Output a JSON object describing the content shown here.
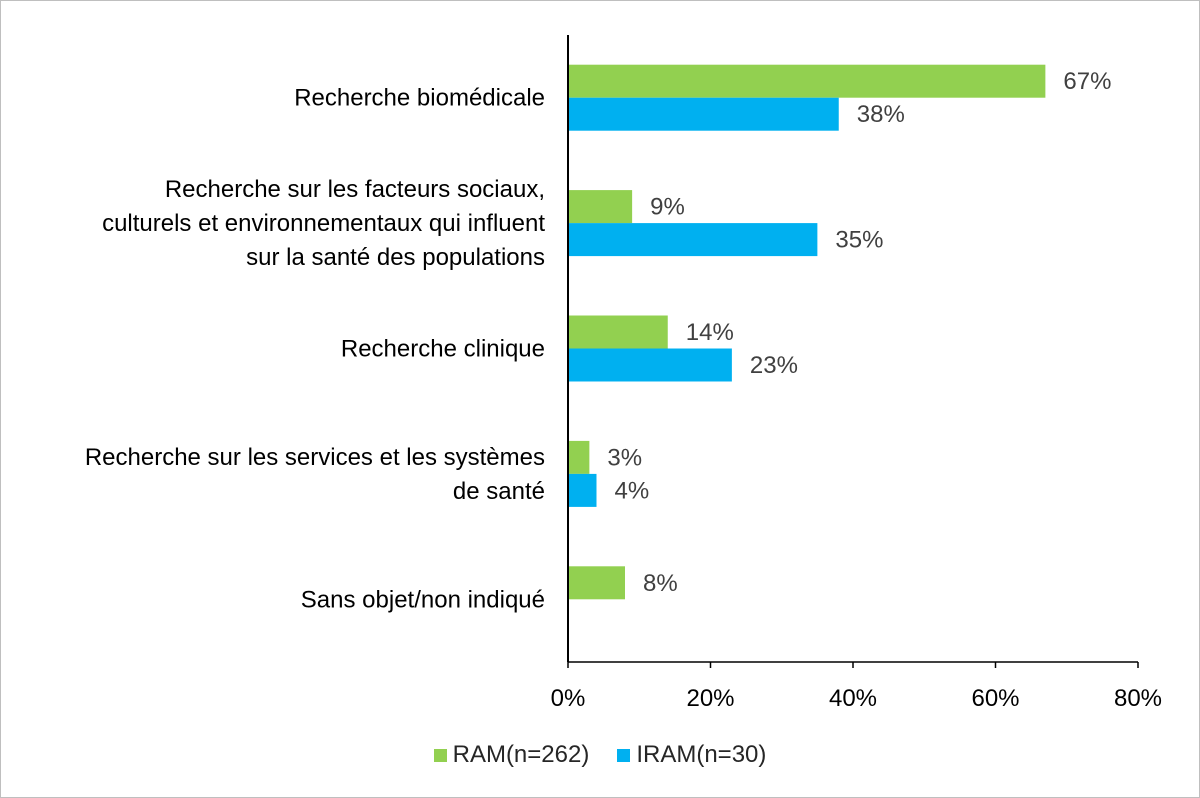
{
  "chart_data": {
    "type": "bar",
    "orientation": "horizontal",
    "categories": [
      "Recherche biomédicale",
      "Recherche sur les facteurs sociaux, culturels et environnementaux qui influent sur la santé des populations",
      "Recherche clinique",
      "Recherche sur les services et les systèmes de santé",
      "Sans objet/non indiqué"
    ],
    "category_lines": [
      [
        "Recherche biomédicale"
      ],
      [
        "Recherche sur les facteurs sociaux,",
        "culturels et environnementaux qui influent",
        "sur la santé des populations"
      ],
      [
        "Recherche clinique"
      ],
      [
        "Recherche sur les services et les systèmes",
        "de santé"
      ],
      [
        "Sans objet/non indiqué"
      ]
    ],
    "series": [
      {
        "name": "RAM(n=262)",
        "color": "#92d050",
        "values": [
          67,
          9,
          14,
          3,
          8
        ],
        "labels": [
          "67%",
          "9%",
          "14%",
          "3%",
          "8%"
        ]
      },
      {
        "name": "IRAM(n=30)",
        "color": "#00b0f0",
        "values": [
          38,
          35,
          23,
          4,
          null
        ],
        "labels": [
          "38%",
          "35%",
          "23%",
          "4%",
          null
        ]
      }
    ],
    "xlim": [
      0,
      80
    ],
    "xticks": [
      0,
      20,
      40,
      60,
      80
    ],
    "xtick_labels": [
      "0%",
      "20%",
      "40%",
      "60%",
      "80%"
    ],
    "grid": false,
    "legend_position": "bottom"
  }
}
